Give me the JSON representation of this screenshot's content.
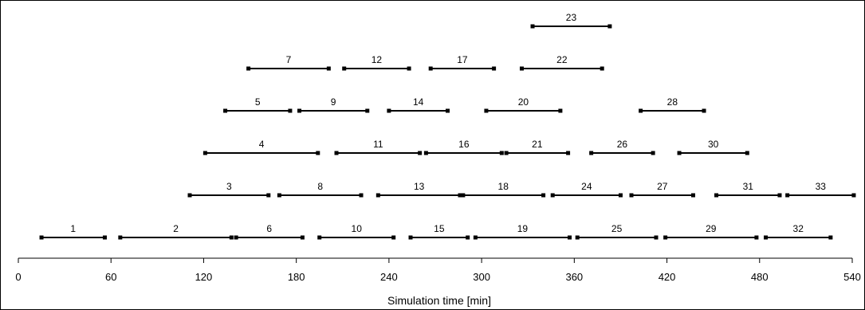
{
  "chart_data": {
    "type": "gantt",
    "xlabel": "Simulation time [min]",
    "xlim": [
      0,
      540
    ],
    "xticks": [
      0,
      60,
      120,
      180,
      240,
      300,
      360,
      420,
      480,
      540
    ],
    "grid": false,
    "legend": "none",
    "line_color": "#000000",
    "intervals": [
      {
        "label": "1",
        "start": 15,
        "end": 56,
        "row": 0
      },
      {
        "label": "2",
        "start": 66,
        "end": 138,
        "row": 0
      },
      {
        "label": "6",
        "start": 141,
        "end": 184,
        "row": 0
      },
      {
        "label": "10",
        "start": 195,
        "end": 243,
        "row": 0
      },
      {
        "label": "15",
        "start": 254,
        "end": 291,
        "row": 0
      },
      {
        "label": "19",
        "start": 296,
        "end": 357,
        "row": 0
      },
      {
        "label": "25",
        "start": 362,
        "end": 413,
        "row": 0
      },
      {
        "label": "29",
        "start": 419,
        "end": 478,
        "row": 0
      },
      {
        "label": "32",
        "start": 484,
        "end": 526,
        "row": 0
      },
      {
        "label": "3",
        "start": 111,
        "end": 162,
        "row": 1
      },
      {
        "label": "8",
        "start": 169,
        "end": 222,
        "row": 1
      },
      {
        "label": "13",
        "start": 233,
        "end": 286,
        "row": 1
      },
      {
        "label": "18",
        "start": 288,
        "end": 340,
        "row": 1
      },
      {
        "label": "24",
        "start": 346,
        "end": 390,
        "row": 1
      },
      {
        "label": "27",
        "start": 397,
        "end": 437,
        "row": 1
      },
      {
        "label": "31",
        "start": 452,
        "end": 493,
        "row": 1
      },
      {
        "label": "33",
        "start": 498,
        "end": 541,
        "row": 1
      },
      {
        "label": "4",
        "start": 121,
        "end": 194,
        "row": 2
      },
      {
        "label": "11",
        "start": 206,
        "end": 260,
        "row": 2
      },
      {
        "label": "16",
        "start": 264,
        "end": 313,
        "row": 2
      },
      {
        "label": "21",
        "start": 316,
        "end": 356,
        "row": 2
      },
      {
        "label": "26",
        "start": 371,
        "end": 411,
        "row": 2
      },
      {
        "label": "30",
        "start": 428,
        "end": 472,
        "row": 2
      },
      {
        "label": "5",
        "start": 134,
        "end": 176,
        "row": 3
      },
      {
        "label": "9",
        "start": 182,
        "end": 226,
        "row": 3
      },
      {
        "label": "14",
        "start": 240,
        "end": 278,
        "row": 3
      },
      {
        "label": "20",
        "start": 303,
        "end": 351,
        "row": 3
      },
      {
        "label": "28",
        "start": 403,
        "end": 444,
        "row": 3
      },
      {
        "label": "7",
        "start": 149,
        "end": 201,
        "row": 4
      },
      {
        "label": "12",
        "start": 211,
        "end": 253,
        "row": 4
      },
      {
        "label": "17",
        "start": 267,
        "end": 308,
        "row": 4
      },
      {
        "label": "22",
        "start": 326,
        "end": 378,
        "row": 4
      },
      {
        "label": "23",
        "start": 333,
        "end": 383,
        "row": 5
      }
    ]
  }
}
